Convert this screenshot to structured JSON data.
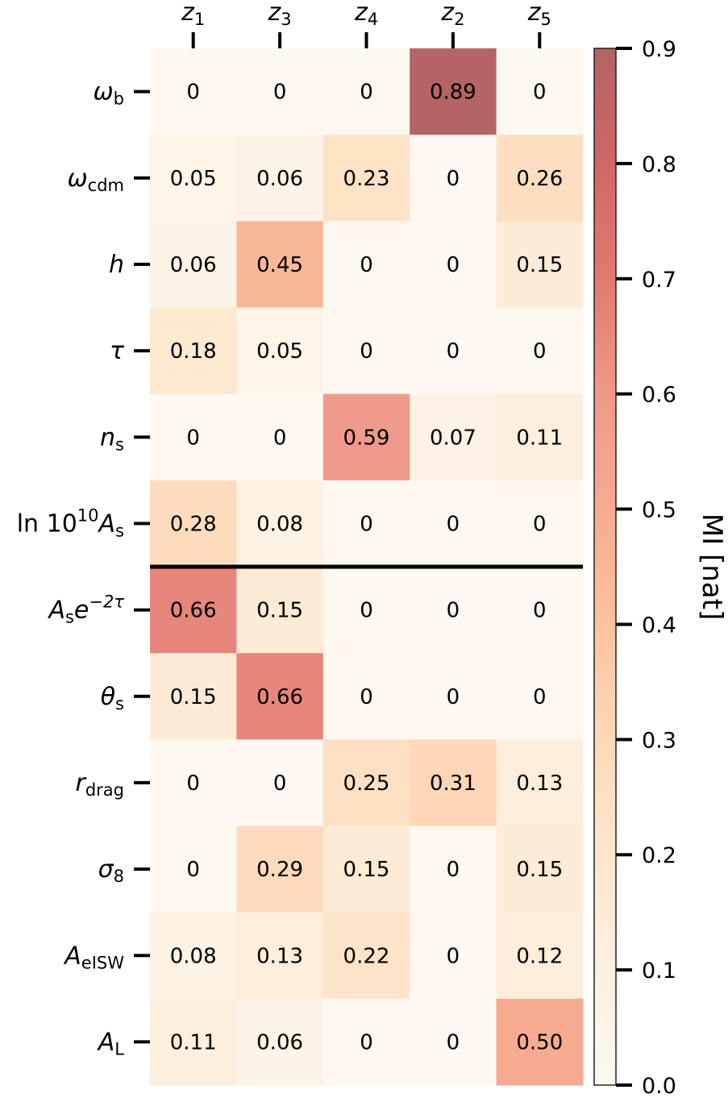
{
  "chart_data": {
    "type": "heatmap",
    "title": "",
    "xlabel": "",
    "ylabel": "",
    "columns": [
      "z1",
      "z3",
      "z4",
      "z2",
      "z5"
    ],
    "column_labels": [
      {
        "base": "z",
        "sub": "1"
      },
      {
        "base": "z",
        "sub": "3"
      },
      {
        "base": "z",
        "sub": "4"
      },
      {
        "base": "z",
        "sub": "2"
      },
      {
        "base": "z",
        "sub": "5"
      }
    ],
    "rows": [
      "omega_b",
      "omega_cdm",
      "h",
      "tau",
      "n_s",
      "ln10^10 A_s",
      "A_s e^-2tau",
      "theta_s",
      "r_drag",
      "sigma_8",
      "A_eISW",
      "A_L"
    ],
    "row_labels": [
      {
        "parts": [
          {
            "t": "ω",
            "s": "it"
          },
          {
            "t": "b",
            "s": "sub"
          }
        ]
      },
      {
        "parts": [
          {
            "t": "ω",
            "s": "it"
          },
          {
            "t": "cdm",
            "s": "sub"
          }
        ]
      },
      {
        "parts": [
          {
            "t": "h",
            "s": "it"
          }
        ]
      },
      {
        "parts": [
          {
            "t": "τ",
            "s": "it"
          }
        ]
      },
      {
        "parts": [
          {
            "t": "n",
            "s": "it"
          },
          {
            "t": "s",
            "s": "sub"
          }
        ]
      },
      {
        "parts": [
          {
            "t": "ln 10",
            "s": "up"
          },
          {
            "t": "10",
            "s": "sup"
          },
          {
            "t": "A",
            "s": "it"
          },
          {
            "t": "s",
            "s": "sub"
          }
        ]
      },
      {
        "parts": [
          {
            "t": "A",
            "s": "it"
          },
          {
            "t": "s",
            "s": "sub"
          },
          {
            "t": "e",
            "s": "it"
          },
          {
            "t": "−2τ",
            "s": "supit"
          }
        ]
      },
      {
        "parts": [
          {
            "t": "θ",
            "s": "it"
          },
          {
            "t": "s",
            "s": "sub"
          }
        ]
      },
      {
        "parts": [
          {
            "t": "r",
            "s": "it"
          },
          {
            "t": "drag",
            "s": "sub"
          }
        ]
      },
      {
        "parts": [
          {
            "t": "σ",
            "s": "it"
          },
          {
            "t": "8",
            "s": "sub"
          }
        ]
      },
      {
        "parts": [
          {
            "t": "A",
            "s": "it"
          },
          {
            "t": "eISW",
            "s": "sub"
          }
        ]
      },
      {
        "parts": [
          {
            "t": "A",
            "s": "it"
          },
          {
            "t": "L",
            "s": "sub"
          }
        ]
      }
    ],
    "values": [
      [
        0,
        0,
        0,
        0.89,
        0
      ],
      [
        0.05,
        0.06,
        0.23,
        0,
        0.26
      ],
      [
        0.06,
        0.45,
        0,
        0,
        0.15
      ],
      [
        0.18,
        0.05,
        0,
        0,
        0
      ],
      [
        0,
        0,
        0.59,
        0.07,
        0.11
      ],
      [
        0.28,
        0.08,
        0,
        0,
        0
      ],
      [
        0.66,
        0.15,
        0,
        0,
        0
      ],
      [
        0.15,
        0.66,
        0,
        0,
        0
      ],
      [
        0,
        0,
        0.25,
        0.31,
        0.13
      ],
      [
        0,
        0.29,
        0.15,
        0,
        0.15
      ],
      [
        0.08,
        0.13,
        0.22,
        0,
        0.12
      ],
      [
        0.11,
        0.06,
        0,
        0,
        0.5
      ]
    ],
    "value_labels": [
      [
        "0",
        "0",
        "0",
        "0.89",
        "0"
      ],
      [
        "0.05",
        "0.06",
        "0.23",
        "0",
        "0.26"
      ],
      [
        "0.06",
        "0.45",
        "0",
        "0",
        "0.15"
      ],
      [
        "0.18",
        "0.05",
        "0",
        "0",
        "0"
      ],
      [
        "0",
        "0",
        "0.59",
        "0.07",
        "0.11"
      ],
      [
        "0.28",
        "0.08",
        "0",
        "0",
        "0"
      ],
      [
        "0.66",
        "0.15",
        "0",
        "0",
        "0"
      ],
      [
        "0.15",
        "0.66",
        "0",
        "0",
        "0"
      ],
      [
        "0",
        "0",
        "0.25",
        "0.31",
        "0.13"
      ],
      [
        "0",
        "0.29",
        "0.15",
        "0",
        "0.15"
      ],
      [
        "0.08",
        "0.13",
        "0.22",
        "0",
        "0.12"
      ],
      [
        "0.11",
        "0.06",
        "0",
        "0",
        "0.50"
      ]
    ],
    "separator_after_row": 5,
    "colorbar": {
      "label": "MI [nat]",
      "range": [
        0.0,
        0.9
      ],
      "ticks": [
        0.0,
        0.1,
        0.2,
        0.3,
        0.4,
        0.5,
        0.6,
        0.7,
        0.8,
        0.9
      ],
      "tick_labels": [
        "0.0",
        "0.1",
        "0.2",
        "0.3",
        "0.4",
        "0.5",
        "0.6",
        "0.7",
        "0.8",
        "0.9"
      ],
      "colormap": [
        "#fef8f0",
        "#fdf0e0",
        "#fde6cc",
        "#fdd9b9",
        "#fbc39f",
        "#f6ab90",
        "#ef988a",
        "#e27a70",
        "#d06666",
        "#b26464"
      ]
    },
    "grid": false,
    "legend": "colorbar-right"
  }
}
